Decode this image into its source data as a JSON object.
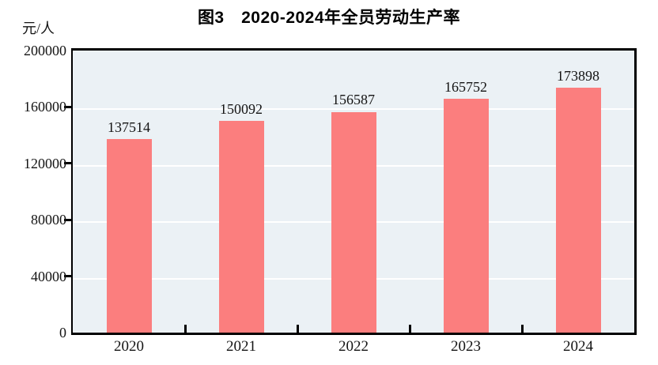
{
  "title": "图3　2020-2024年全员劳动生产率",
  "y_axis_unit": "元/人",
  "chart_data": {
    "type": "bar",
    "title": "图3　2020-2024年全员劳动生产率",
    "categories": [
      "2020",
      "2021",
      "2022",
      "2023",
      "2024"
    ],
    "values": [
      137514,
      150092,
      156587,
      165752,
      173898
    ],
    "data_labels": [
      "137514",
      "150092",
      "156587",
      "165752",
      "173898"
    ],
    "xlabel": "",
    "ylabel": "元/人",
    "ylim": [
      0,
      200000
    ],
    "yticks": [
      0,
      40000,
      80000,
      120000,
      160000,
      200000
    ],
    "ytick_labels": [
      "0",
      "40000",
      "80000",
      "120000",
      "160000",
      "200000"
    ],
    "grid": true,
    "legend_position": "none",
    "bar_color": "#fb7e7e",
    "plot_background": "#ebf1f5",
    "gridline_color": "#ffffff",
    "axis_color": "#000000",
    "text_color": "#141414"
  }
}
